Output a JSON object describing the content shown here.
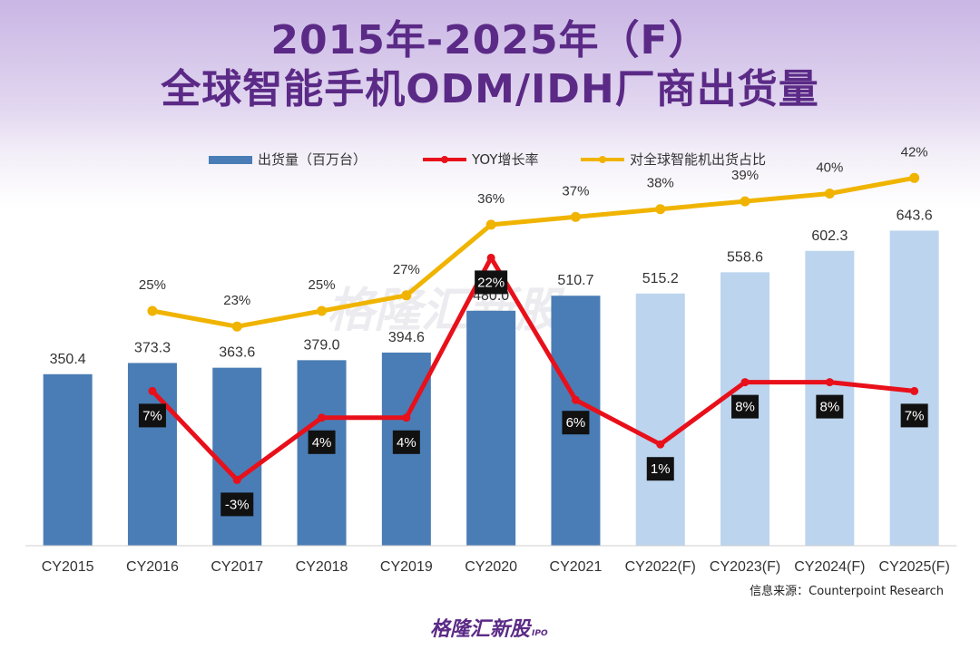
{
  "title": {
    "line1": "2015年-2025年（F）",
    "line2": "全球智能手机ODM/IDH厂商出货量"
  },
  "source": "信息来源：Counterpoint Research",
  "watermark": {
    "text": "格隆汇新股",
    "sub": "IPO"
  },
  "colors": {
    "bar_actual": "#4a7db5",
    "bar_forecast": "#bcd4ee",
    "yoy_line": "#e8101a",
    "share_line": "#f0b400",
    "title": "#5b2a86"
  },
  "chart_data": {
    "type": "bar",
    "categories": [
      "CY2015",
      "CY2016",
      "CY2017",
      "CY2018",
      "CY2019",
      "CY2020",
      "CY2021",
      "CY2022(F)",
      "CY2023(F)",
      "CY2024(F)",
      "CY2025(F)"
    ],
    "forecast": [
      false,
      false,
      false,
      false,
      false,
      false,
      false,
      true,
      true,
      true,
      true
    ],
    "series": [
      {
        "name": "出货量（百万台）",
        "type": "bar",
        "values": [
          350.4,
          373.3,
          363.6,
          379.0,
          394.6,
          480.0,
          510.7,
          515.2,
          558.6,
          602.3,
          643.6
        ],
        "labels": [
          "350.4",
          "373.3",
          "363.6",
          "379.0",
          "394.6",
          "480.0",
          "510.7",
          "515.2",
          "558.6",
          "602.3",
          "643.6"
        ]
      },
      {
        "name": "YOY增长率",
        "type": "line",
        "values": [
          null,
          7,
          -3,
          4,
          4,
          22,
          6,
          1,
          8,
          8,
          7
        ],
        "labels": [
          "",
          "7%",
          "-3%",
          "4%",
          "4%",
          "22%",
          "6%",
          "1%",
          "8%",
          "8%",
          "7%"
        ]
      },
      {
        "name": "对全球智能机出货占比",
        "type": "line",
        "values": [
          null,
          25,
          23,
          25,
          27,
          36,
          37,
          38,
          39,
          40,
          42
        ],
        "labels": [
          "",
          "25%",
          "23%",
          "25%",
          "27%",
          "36%",
          "37%",
          "38%",
          "39%",
          "40%",
          "42%"
        ]
      }
    ],
    "legend_position": "top"
  }
}
